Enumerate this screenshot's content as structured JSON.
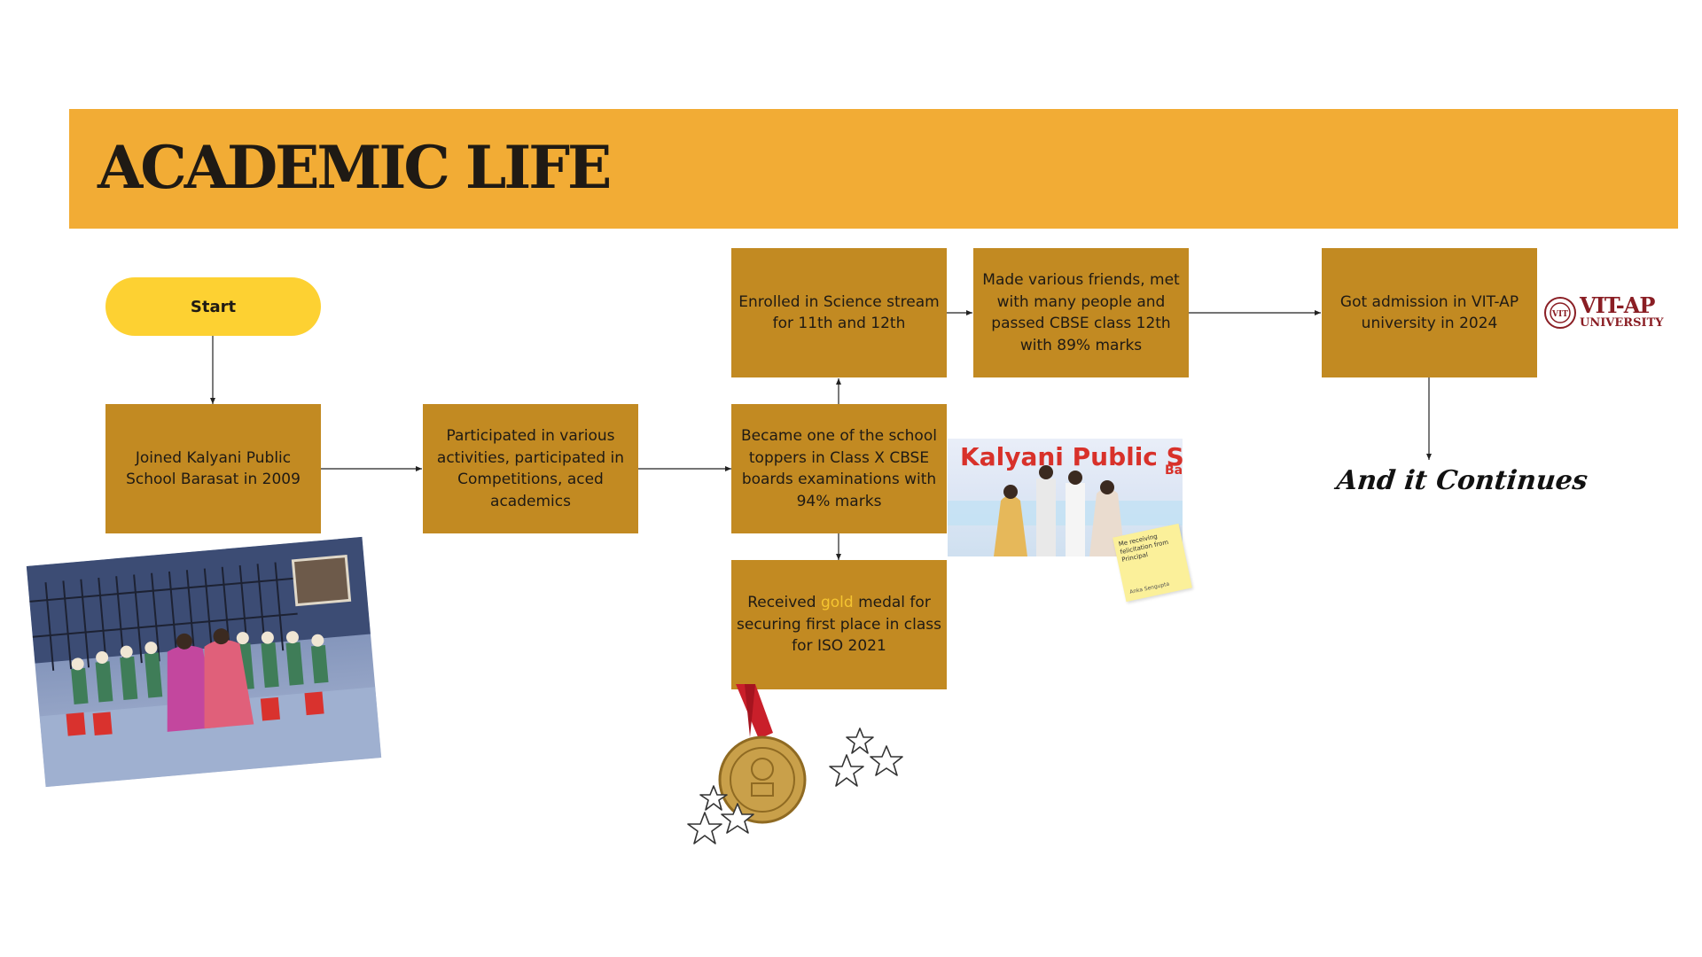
{
  "banner": {
    "title": "ACADEMIC LIFE"
  },
  "flow": {
    "start": "Start",
    "joined": "Joined Kalyani Public School Barasat in 2009",
    "participated": "Participated in various activities, participated in Competitions, aced academics",
    "toppers": "Became one of the school toppers in Class X CBSE boards examinations with 94% marks",
    "medal_before": "Received ",
    "medal_gold": "gold",
    "medal_after": " medal for securing first place in class for ISO 2021",
    "science": "Enrolled in Science stream for 11th and 12th",
    "friends": "Made various friends, met with many people and passed CBSE class 12th with 89% marks",
    "admission": "Got admission in VIT-AP university in 2024",
    "continues": "And it Continues"
  },
  "felicitation_photo": {
    "banner_text": "Kalyani Public Sch",
    "side_text": "Ba"
  },
  "sticky_note": {
    "text": "Me receiving felicitation from Principal",
    "author": "Anka Sengupta"
  },
  "logo": {
    "name": "VIT-AP",
    "sub": "UNIVERSITY",
    "emblem": "VIT"
  },
  "colors": {
    "banner": "#f2ac35",
    "box": "#c28a22",
    "start": "#fdd132",
    "gold_text": "#f5c531"
  }
}
